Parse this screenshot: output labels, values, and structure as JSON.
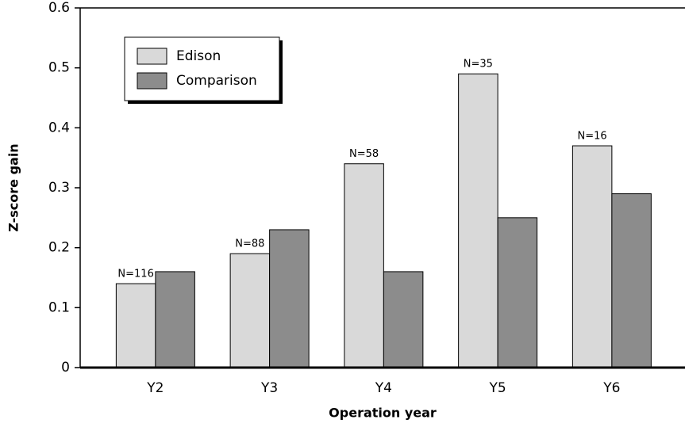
{
  "chart_data": {
    "type": "bar",
    "x_label": "Operation year",
    "y_label": "Z-score gain",
    "categories": [
      "Y2",
      "Y3",
      "Y4",
      "Y5",
      "Y6"
    ],
    "series": [
      {
        "name": "Edison",
        "color": "#d9d9d9",
        "values": [
          0.14,
          0.19,
          0.34,
          0.49,
          0.37
        ]
      },
      {
        "name": "Comparison",
        "color": "#8c8c8c",
        "values": [
          0.16,
          0.23,
          0.16,
          0.25,
          0.29
        ]
      }
    ],
    "annotations": [
      "N=116",
      "N=88",
      "N=58",
      "N=35",
      "N=16"
    ],
    "ylim": [
      0,
      0.6
    ],
    "yticks": [
      0,
      0.1,
      0.2,
      0.3,
      0.4,
      0.5,
      0.6
    ],
    "legend": "upper left"
  }
}
